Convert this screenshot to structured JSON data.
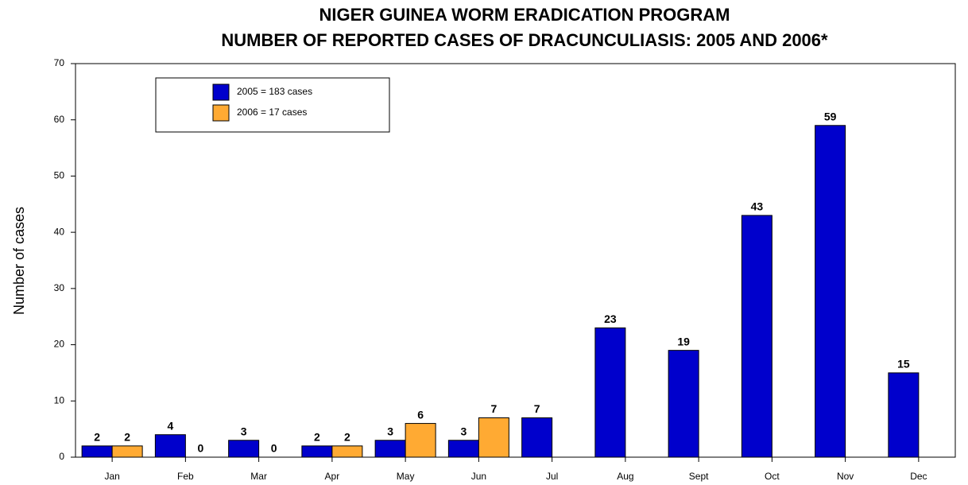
{
  "chart_data": {
    "type": "bar",
    "title": [
      "NIGER GUINEA WORM ERADICATION PROGRAM",
      "NUMBER OF REPORTED CASES OF DRACUNCULIASIS: 2005 AND  2006*"
    ],
    "y_label": "Number of cases",
    "categories": [
      "Jan",
      "Feb",
      "Mar",
      "Apr",
      "May",
      "Jun",
      "Jul",
      "Aug",
      "Sept",
      "Oct",
      "Nov",
      "Dec"
    ],
    "series": [
      {
        "name": "2005 = 183 cases",
        "color": "#0000cc",
        "values": [
          2,
          4,
          3,
          2,
          3,
          3,
          7,
          23,
          19,
          43,
          59,
          15
        ]
      },
      {
        "name": "2006 = 17 cases",
        "color": "#ffaa33",
        "values": [
          2,
          0,
          0,
          2,
          6,
          7,
          null,
          null,
          null,
          null,
          null,
          null
        ]
      }
    ],
    "ylim": [
      0,
      70
    ],
    "yticks": [
      0,
      10,
      20,
      30,
      40,
      50,
      60,
      70
    ],
    "grid": false,
    "legend": "top-left"
  }
}
